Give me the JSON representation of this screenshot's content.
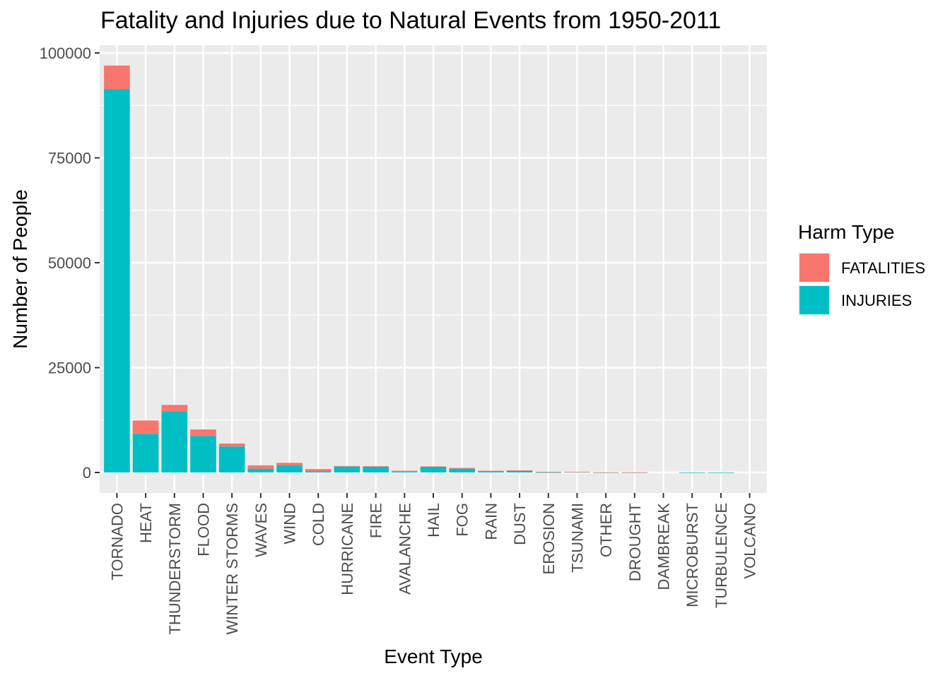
{
  "chart_data": {
    "type": "bar",
    "stacked": true,
    "title": "Fatality and Injuries due to Natural Events from 1950-2011",
    "xlabel": "Event Type",
    "ylabel": "Number of People",
    "ylim": [
      -5000,
      102000
    ],
    "yticks": [
      0,
      25000,
      50000,
      75000,
      100000
    ],
    "ytick_labels": [
      "0",
      "25000",
      "50000",
      "75000",
      "100000"
    ],
    "grid": true,
    "legend": {
      "title": "Harm Type",
      "position": "right"
    },
    "categories": [
      "TORNADO",
      "HEAT",
      "THUNDERSTORM",
      "FLOOD",
      "WINTER STORMS",
      "WAVES",
      "WIND",
      "COLD",
      "HURRICANE",
      "FIRE",
      "AVALANCHE",
      "HAIL",
      "FOG",
      "RAIN",
      "DUST",
      "EROSION",
      "TSUNAMI",
      "OTHER",
      "DROUGHT",
      "DAMBREAK",
      "MICROBURST",
      "TURBULENCE",
      "VOLCANO"
    ],
    "series": [
      {
        "name": "INJURIES",
        "color": "#00BFC4",
        "values": [
          91400,
          9200,
          14600,
          8700,
          6200,
          900,
          1700,
          300,
          1400,
          1400,
          200,
          1400,
          900,
          300,
          450,
          50,
          130,
          20,
          20,
          0,
          10,
          10,
          0
        ]
      },
      {
        "name": "FATALITIES",
        "color": "#F8766D",
        "values": [
          5600,
          3200,
          1500,
          1550,
          700,
          800,
          600,
          500,
          150,
          100,
          230,
          50,
          200,
          120,
          50,
          130,
          30,
          10,
          10,
          0,
          0,
          0,
          0
        ]
      }
    ]
  }
}
